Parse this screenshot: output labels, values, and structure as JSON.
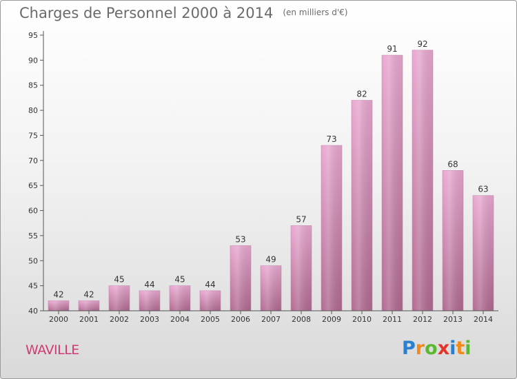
{
  "header": {
    "title": "Charges de Personnel 2000 à 2014",
    "subtitle": "(en milliers d'€)"
  },
  "commune": "WAVILLE",
  "logo": {
    "text": "Proxiti",
    "letters": [
      {
        "ch": "P",
        "color": "#2a7fd0"
      },
      {
        "ch": "r",
        "color": "#f28a1a"
      },
      {
        "ch": "o",
        "color": "#5bb833"
      },
      {
        "ch": "x",
        "color": "#e2342b"
      },
      {
        "ch": "i",
        "color": "#2a7fd0"
      },
      {
        "ch": "t",
        "color": "#f28a1a"
      },
      {
        "ch": "i",
        "color": "#5bb833"
      }
    ]
  },
  "colors": {
    "bar_top": "#e8a8d0",
    "bar_bottom": "#b06a90",
    "axis": "#555555",
    "label": "#333333"
  },
  "chart_data": {
    "type": "bar",
    "title": "Charges de Personnel 2000 à 2014",
    "subtitle": "(en milliers d'€)",
    "categories": [
      "2000",
      "2001",
      "2002",
      "2003",
      "2004",
      "2005",
      "2006",
      "2007",
      "2008",
      "2009",
      "2010",
      "2011",
      "2012",
      "2013",
      "2014"
    ],
    "values": [
      42,
      42,
      45,
      44,
      45,
      44,
      53,
      49,
      57,
      73,
      82,
      91,
      92,
      68,
      63
    ],
    "ylim": [
      40,
      95
    ],
    "yticks": [
      40,
      45,
      50,
      55,
      60,
      65,
      70,
      75,
      80,
      85,
      90,
      95
    ],
    "grid": false,
    "data_labels": true
  }
}
